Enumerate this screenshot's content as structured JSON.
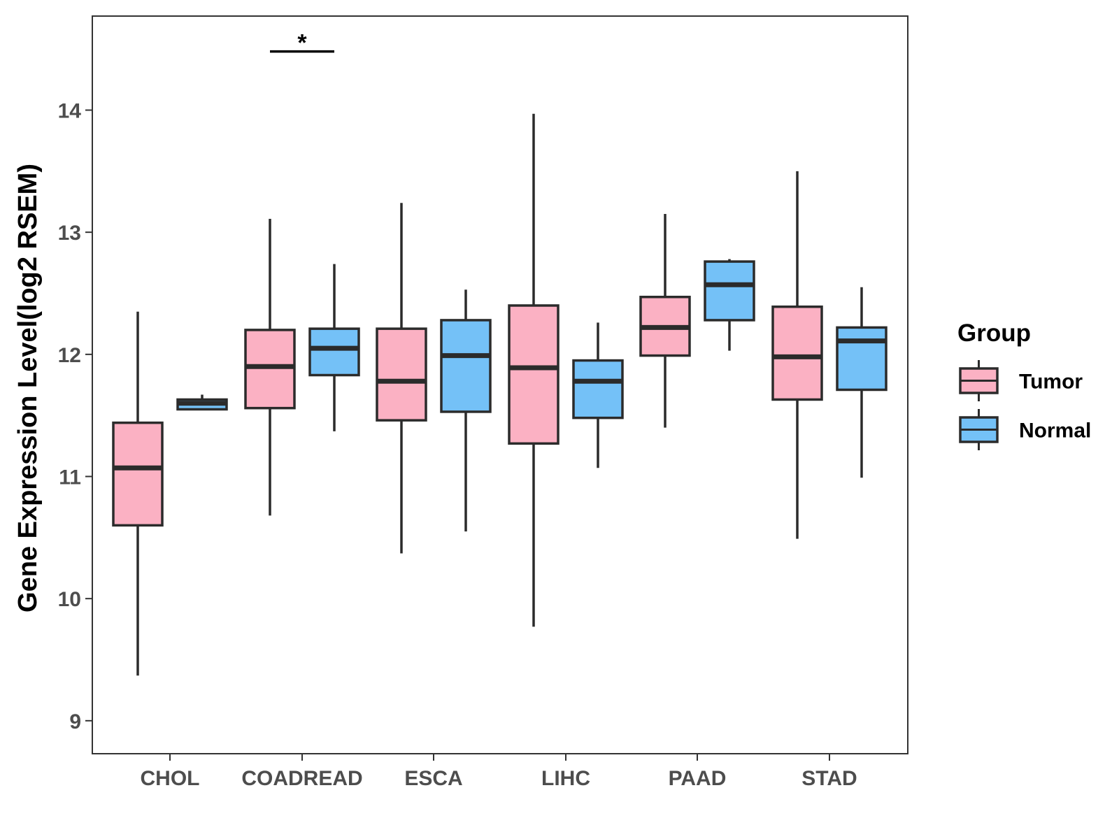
{
  "chart_data": {
    "type": "boxplot",
    "title": "",
    "xlabel": "",
    "ylabel": "Gene Expression Level(log2 RSEM)",
    "ylim": [
      8.73,
      14.77
    ],
    "yticks": [
      9,
      10,
      11,
      12,
      13,
      14
    ],
    "categories": [
      "CHOL",
      "COADREAD",
      "ESCA",
      "LIHC",
      "PAAD",
      "STAD"
    ],
    "grid": false,
    "legend": {
      "title": "Group",
      "position": "right"
    },
    "series": [
      {
        "name": "Tumor",
        "color": "#FBB1C3",
        "boxes": [
          {
            "min": 9.37,
            "q1": 10.6,
            "median": 11.07,
            "q3": 11.44,
            "max": 12.35
          },
          {
            "min": 10.68,
            "q1": 11.56,
            "median": 11.9,
            "q3": 12.2,
            "max": 13.11
          },
          {
            "min": 10.37,
            "q1": 11.46,
            "median": 11.78,
            "q3": 12.21,
            "max": 13.24
          },
          {
            "min": 9.77,
            "q1": 11.27,
            "median": 11.89,
            "q3": 12.4,
            "max": 13.97
          },
          {
            "min": 11.4,
            "q1": 11.99,
            "median": 12.22,
            "q3": 12.47,
            "max": 13.15
          },
          {
            "min": 10.49,
            "q1": 11.63,
            "median": 11.98,
            "q3": 12.39,
            "max": 13.5
          }
        ]
      },
      {
        "name": "Normal",
        "color": "#74C1F7",
        "boxes": [
          {
            "min": 11.55,
            "q1": 11.55,
            "median": 11.6,
            "q3": 11.63,
            "max": 11.67
          },
          {
            "min": 11.37,
            "q1": 11.83,
            "median": 12.05,
            "q3": 12.21,
            "max": 12.74
          },
          {
            "min": 10.55,
            "q1": 11.53,
            "median": 11.99,
            "q3": 12.28,
            "max": 12.53
          },
          {
            "min": 11.07,
            "q1": 11.48,
            "median": 11.78,
            "q3": 11.95,
            "max": 12.26
          },
          {
            "min": 12.03,
            "q1": 12.28,
            "median": 12.57,
            "q3": 12.76,
            "max": 12.78
          },
          {
            "min": 10.99,
            "q1": 11.71,
            "median": 12.11,
            "q3": 12.22,
            "max": 12.55
          }
        ]
      }
    ],
    "annotations": [
      {
        "category": "COADREAD",
        "label": "*",
        "y": 14.48
      }
    ]
  }
}
